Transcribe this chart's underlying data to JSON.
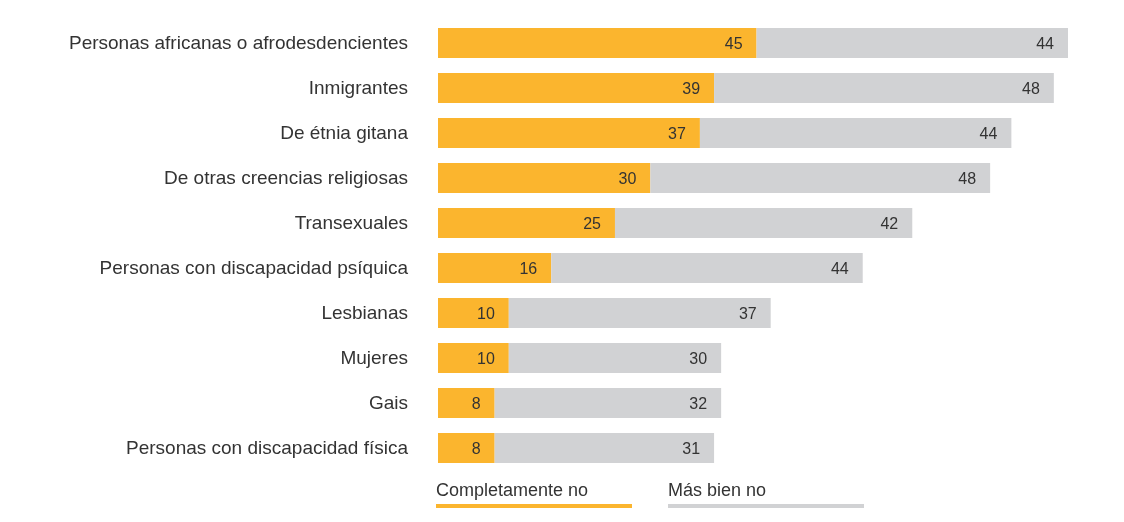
{
  "chart_data": {
    "type": "bar",
    "orientation": "horizontal",
    "stacked": true,
    "categories": [
      "Personas africanas o afrodesdencientes",
      "Inmigrantes",
      "De étnia gitana",
      "De otras creencias religiosas",
      "Transexuales",
      "Personas con discapacidad psíquica",
      "Lesbianas",
      "Mujeres",
      "Gais",
      "Personas con discapacidad física"
    ],
    "series": [
      {
        "name": "Completamente no",
        "color": "#fbb52e",
        "values": [
          45,
          39,
          37,
          30,
          25,
          16,
          10,
          10,
          8,
          8
        ]
      },
      {
        "name": "Más bien no",
        "color": "#d1d2d4",
        "values": [
          44,
          48,
          44,
          48,
          42,
          44,
          37,
          30,
          32,
          31
        ]
      }
    ],
    "tick_labels": "y",
    "data_labels": true,
    "legend": "bottom"
  }
}
